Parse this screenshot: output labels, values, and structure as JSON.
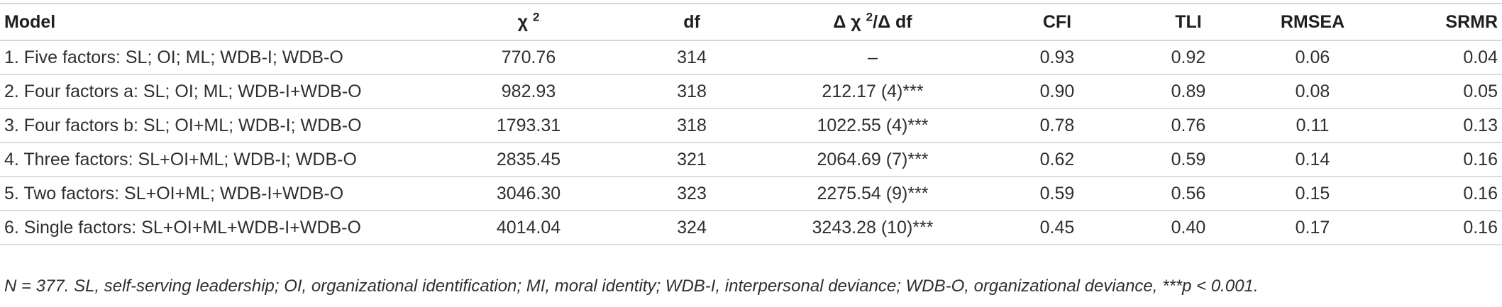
{
  "table": {
    "headers": {
      "model": "Model",
      "chi2": "χ",
      "chi2_sup": "2",
      "df": "df",
      "delta_pre": "Δ χ",
      "delta_sup": "2",
      "delta_post": "/Δ df",
      "cfi": "CFI",
      "tli": "TLI",
      "rmsea": "RMSEA",
      "srmr": "SRMR"
    },
    "rows": [
      {
        "model": "1. Five factors: SL; OI; ML; WDB-I; WDB-O",
        "chi2": "770.76",
        "df": "314",
        "delta": "–",
        "cfi": "0.93",
        "tli": "0.92",
        "rmsea": "0.06",
        "srmr": "0.04"
      },
      {
        "model": "2. Four factors a: SL; OI; ML; WDB-I+WDB-O",
        "chi2": "982.93",
        "df": "318",
        "delta": "212.17 (4)***",
        "cfi": "0.90",
        "tli": "0.89",
        "rmsea": "0.08",
        "srmr": "0.05"
      },
      {
        "model": "3. Four factors b: SL; OI+ML; WDB-I; WDB-O",
        "chi2": "1793.31",
        "df": "318",
        "delta": "1022.55 (4)***",
        "cfi": "0.78",
        "tli": "0.76",
        "rmsea": "0.11",
        "srmr": "0.13"
      },
      {
        "model": "4. Three factors: SL+OI+ML; WDB-I; WDB-O",
        "chi2": "2835.45",
        "df": "321",
        "delta": "2064.69 (7)***",
        "cfi": "0.62",
        "tli": "0.59",
        "rmsea": "0.14",
        "srmr": "0.16"
      },
      {
        "model": "5. Two factors: SL+OI+ML; WDB-I+WDB-O",
        "chi2": "3046.30",
        "df": "323",
        "delta": "2275.54 (9)***",
        "cfi": "0.59",
        "tli": "0.56",
        "rmsea": "0.15",
        "srmr": "0.16"
      },
      {
        "model": "6. Single factors: SL+OI+ML+WDB-I+WDB-O",
        "chi2": "4014.04",
        "df": "324",
        "delta": "3243.28 (10)***",
        "cfi": "0.45",
        "tli": "0.40",
        "rmsea": "0.17",
        "srmr": "0.16"
      }
    ],
    "footnote": "N = 377. SL, self-serving leadership; OI, organizational identification; MI, moral identity; WDB-I, interpersonal deviance; WDB-O, organizational deviance, ***p < 0.001."
  }
}
